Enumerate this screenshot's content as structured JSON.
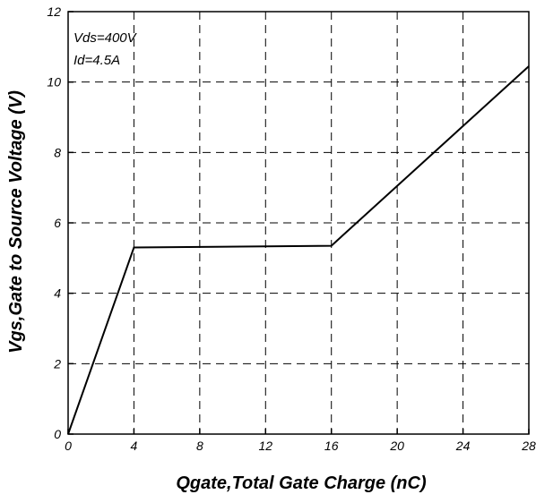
{
  "chart_data": {
    "type": "line",
    "title": "",
    "xlabel": "Qgate,Total Gate Charge (nC)",
    "ylabel": "Vgs,Gate to Source Voltage (V)",
    "xlim": [
      0,
      28
    ],
    "ylim": [
      0,
      12
    ],
    "xticks": [
      0,
      4,
      8,
      12,
      16,
      20,
      24,
      28
    ],
    "yticks": [
      0,
      2,
      4,
      6,
      8,
      10,
      12
    ],
    "xtick_labels": [
      "0",
      "4",
      "8",
      "12",
      "16",
      "20",
      "24",
      "28"
    ],
    "ytick_labels": [
      "0",
      "2",
      "4",
      "6",
      "8",
      "10",
      "12"
    ],
    "grid": true,
    "grid_style": "dashed",
    "annotations": [
      "Vds=400V",
      "Id=4.5A"
    ],
    "series": [
      {
        "x": [
          0,
          4,
          16,
          28
        ],
        "y": [
          0,
          5.3,
          5.35,
          10.45
        ],
        "color": "#000000"
      }
    ]
  }
}
